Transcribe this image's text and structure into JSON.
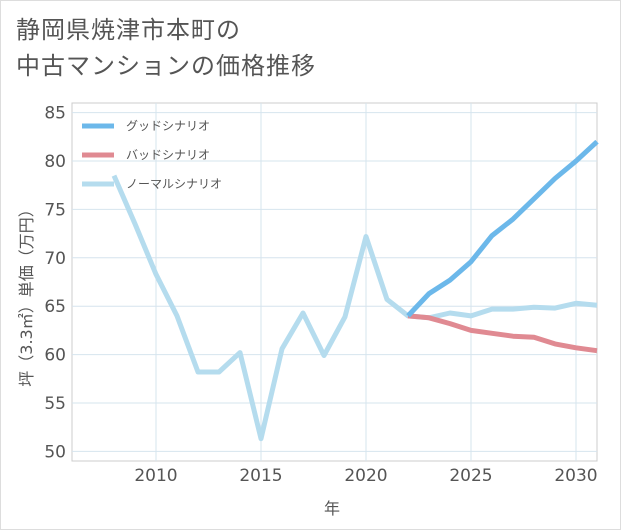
{
  "title_lines": [
    "静岡県焼津市本町の",
    "中古マンションの価格推移"
  ],
  "chart_data": {
    "type": "line",
    "title": "静岡県焼津市本町の中古マンションの価格推移",
    "xlabel": "年",
    "ylabel": "坪（3.3㎡）単価（万円）",
    "xlim": [
      2006,
      2031
    ],
    "ylim": [
      49,
      86
    ],
    "x_ticks": [
      2010,
      2015,
      2020,
      2025,
      2030
    ],
    "y_ticks": [
      50,
      55,
      60,
      65,
      70,
      75,
      80,
      85
    ],
    "grid": true,
    "legend_position": "top-left",
    "series": [
      {
        "name": "グッドシナリオ",
        "color": "#6cb8ea",
        "x": [
          2022,
          2023,
          2024,
          2025,
          2026,
          2027,
          2028,
          2029,
          2030,
          2031
        ],
        "values": [
          64.0,
          66.3,
          67.7,
          69.6,
          72.3,
          74.0,
          76.1,
          78.2,
          80.0,
          82.0
        ]
      },
      {
        "name": "バッドシナリオ",
        "color": "#e08a92",
        "x": [
          2022,
          2023,
          2024,
          2025,
          2026,
          2027,
          2028,
          2029,
          2030,
          2031
        ],
        "values": [
          64.0,
          63.8,
          63.2,
          62.5,
          62.2,
          61.9,
          61.8,
          61.1,
          60.7,
          60.4
        ]
      },
      {
        "name": "ノーマルシナリオ",
        "color": "#b5dcee",
        "x": [
          2008,
          2009,
          2010,
          2011,
          2012,
          2013,
          2014,
          2015,
          2016,
          2017,
          2018,
          2019,
          2020,
          2021,
          2022,
          2023,
          2024,
          2025,
          2026,
          2027,
          2028,
          2029,
          2030,
          2031
        ],
        "values": [
          78.5,
          73.5,
          68.3,
          64.0,
          58.2,
          58.2,
          60.2,
          51.3,
          60.6,
          64.3,
          59.9,
          63.9,
          72.2,
          65.7,
          64.0,
          63.8,
          64.3,
          64.0,
          64.7,
          64.7,
          64.9,
          64.8,
          65.3,
          65.1
        ]
      }
    ]
  }
}
